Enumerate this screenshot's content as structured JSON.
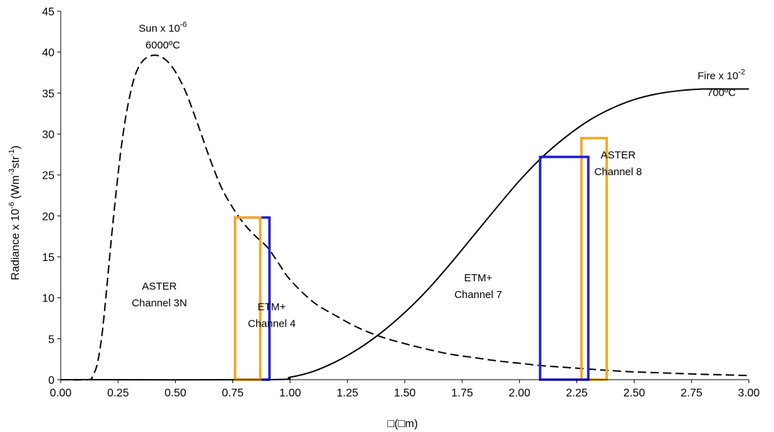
{
  "chart_data": {
    "type": "line",
    "title": "",
    "xlabel": "□(□m)",
    "ylabel": {
      "prefix": "Radiance x 10",
      "prefix_exp": "-6",
      "unit_open": "(Wm",
      "unit_exp1": "-3",
      "unit_mid": "str",
      "unit_exp2": "-1",
      "unit_close": ")"
    },
    "xlim": [
      0.0,
      3.0
    ],
    "ylim": [
      0,
      45
    ],
    "xticks": [
      "0.00",
      "0.25",
      "0.50",
      "0.75",
      "1.00",
      "1.25",
      "1.50",
      "1.75",
      "2.00",
      "2.25",
      "2.50",
      "2.75",
      "3.00"
    ],
    "yticks": [
      "0",
      "5",
      "10",
      "15",
      "20",
      "25",
      "30",
      "35",
      "40",
      "45"
    ],
    "grid": false,
    "series": [
      {
        "style": "dashed",
        "color": "#000000",
        "x": [
          0.0,
          0.12,
          0.14,
          0.16,
          0.18,
          0.2,
          0.22,
          0.24,
          0.26,
          0.28,
          0.3,
          0.32,
          0.34,
          0.36,
          0.38,
          0.4,
          0.42,
          0.44,
          0.46,
          0.48,
          0.5,
          0.52,
          0.55,
          0.6,
          0.65,
          0.7,
          0.75,
          0.8,
          0.85,
          0.9,
          0.95,
          1.0,
          1.1,
          1.2,
          1.3,
          1.4,
          1.5,
          1.6,
          1.7,
          1.8,
          1.9,
          2.0,
          2.1,
          2.2,
          2.3,
          2.4,
          2.5,
          2.6,
          2.7,
          2.8,
          2.9,
          3.0
        ],
        "y": [
          0,
          0,
          0.5,
          2.0,
          5.5,
          11.0,
          17.0,
          22.5,
          27.5,
          31.5,
          34.5,
          36.8,
          38.2,
          39.0,
          39.4,
          39.6,
          39.6,
          39.4,
          39.0,
          38.4,
          37.6,
          36.6,
          34.8,
          31.0,
          27.0,
          23.5,
          21.0,
          19.0,
          17.5,
          16.2,
          14.2,
          12.2,
          9.5,
          7.8,
          6.3,
          5.2,
          4.4,
          3.7,
          3.1,
          2.7,
          2.3,
          2.0,
          1.7,
          1.5,
          1.3,
          1.1,
          0.95,
          0.85,
          0.75,
          0.65,
          0.58,
          0.5
        ]
      },
      {
        "style": "solid",
        "color": "#000000",
        "x": [
          0.0,
          0.9,
          1.0,
          1.1,
          1.2,
          1.3,
          1.4,
          1.5,
          1.6,
          1.7,
          1.8,
          1.9,
          2.0,
          2.1,
          2.2,
          2.3,
          2.4,
          2.5,
          2.6,
          2.7,
          2.8,
          2.9,
          3.0
        ],
        "y": [
          0,
          0,
          0.3,
          1.0,
          2.2,
          3.8,
          5.8,
          8.2,
          11.0,
          14.2,
          17.6,
          21.0,
          24.3,
          27.2,
          29.6,
          31.6,
          33.1,
          34.2,
          34.9,
          35.3,
          35.5,
          35.5,
          35.5
        ]
      }
    ],
    "bands": [
      {
        "name": "ASTER Channel 8",
        "x": [
          2.27,
          2.38
        ],
        "y": [
          0,
          29.5
        ],
        "color": "#f5a623"
      },
      {
        "name": "ETM+ Channel 7",
        "x": [
          2.09,
          2.3
        ],
        "y": [
          0,
          27.2
        ],
        "color": "#1f1fd6"
      },
      {
        "name": "ETM+ Channel 4",
        "x": [
          0.76,
          0.91
        ],
        "y": [
          0,
          19.8
        ],
        "color": "#1f1fd6"
      },
      {
        "name": "ASTER Channel 3N",
        "x": [
          0.76,
          0.87
        ],
        "y": [
          0,
          19.8
        ],
        "color": "#f5a623"
      }
    ],
    "annotations": [
      {
        "id": "sun-title",
        "x": 0.445,
        "y": 42.5,
        "lines": [
          {
            "text": "Sun x 10",
            "sup": "-6"
          },
          {
            "text": "6000ºC"
          }
        ]
      },
      {
        "id": "fire-title",
        "x": 2.88,
        "y": 36.7,
        "lines": [
          {
            "text": "Fire x 10",
            "sup": "-2"
          },
          {
            "text": "700ºC"
          }
        ]
      },
      {
        "id": "aster-3n",
        "x": 0.43,
        "y": 11.0,
        "lines": [
          {
            "text": "ASTER"
          },
          {
            "text": "Channel 3N"
          }
        ]
      },
      {
        "id": "etm-4",
        "x": 0.92,
        "y": 8.5,
        "lines": [
          {
            "text": "ETM+"
          },
          {
            "text": "Channel 4"
          }
        ]
      },
      {
        "id": "etm-7",
        "x": 1.82,
        "y": 12.0,
        "lines": [
          {
            "text": "ETM+"
          },
          {
            "text": "Channel 7"
          }
        ]
      },
      {
        "id": "aster-8",
        "x": 2.43,
        "y": 27.0,
        "lines": [
          {
            "text": "ASTER"
          },
          {
            "text": "Channel 8"
          }
        ]
      }
    ]
  }
}
